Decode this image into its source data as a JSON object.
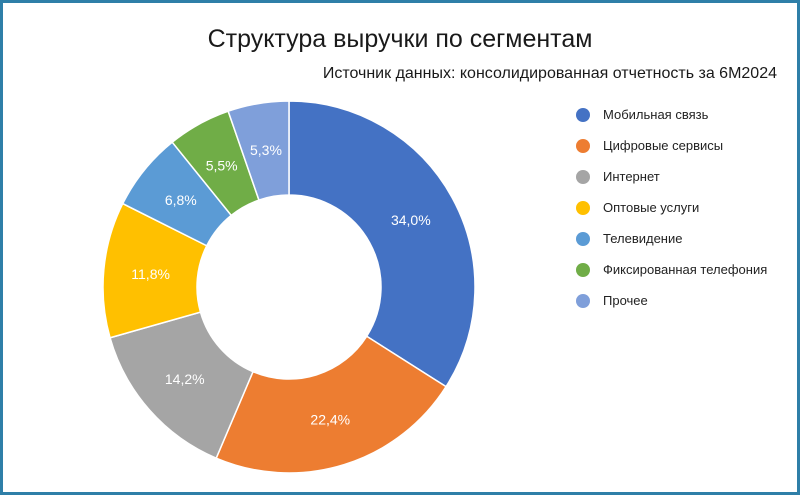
{
  "chart_data": {
    "type": "pie",
    "variant": "donut",
    "title": "Структура выручки по сегментам",
    "subtitle": "Источник данных: консолидированная отчетность за 6М2024",
    "legend_position": "right",
    "categories": [
      "Мобильная связь",
      "Цифровые сервисы",
      "Интернет",
      "Оптовые услуги",
      "Телевидение",
      "Фиксированная телефония",
      "Прочее"
    ],
    "values": [
      34.0,
      22.4,
      14.2,
      11.8,
      6.8,
      5.5,
      5.3
    ],
    "data_labels": [
      "34,0%",
      "22,4%",
      "14,2%",
      "11,8%",
      "6,8%",
      "5,5%",
      "5,3%"
    ],
    "colors": [
      "#4472c4",
      "#ed7d31",
      "#a5a5a5",
      "#ffc000",
      "#5b9bd5",
      "#70ad47",
      "#7f9fda"
    ]
  }
}
